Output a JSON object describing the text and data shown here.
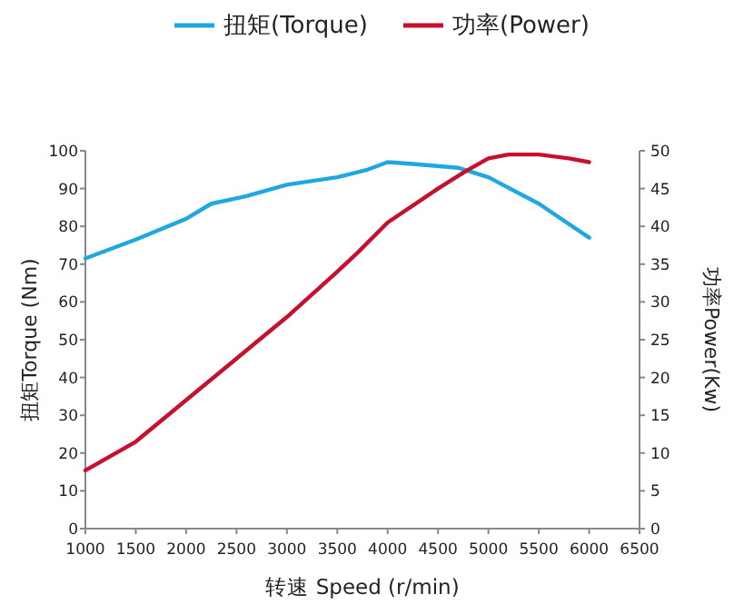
{
  "chart_data": {
    "type": "line",
    "xlabel": "转速 Speed (r/min)",
    "ylabel": "扭矩Torque (Nm)",
    "y2label": "功率Power(Kw)",
    "legend": "top",
    "grid": false,
    "marker": "none",
    "line_style": "solid",
    "xlim": [
      1000,
      6500
    ],
    "xticks": [
      1000,
      1500,
      2000,
      2500,
      3000,
      3500,
      4000,
      4500,
      5000,
      5500,
      6000,
      6500
    ],
    "ylim": [
      0,
      100
    ],
    "yticks": [
      0,
      10,
      20,
      30,
      40,
      50,
      60,
      70,
      80,
      90,
      100
    ],
    "y2lim": [
      0,
      50
    ],
    "y2ticks": [
      0,
      5,
      10,
      15,
      20,
      25,
      30,
      35,
      40,
      45,
      50
    ],
    "series": [
      {
        "name": "扭矩(Torque)",
        "color": "#1fa8e0",
        "x": [
          1000,
          1500,
          2000,
          2250,
          2600,
          3000,
          3500,
          3800,
          4000,
          4250,
          4700,
          5000,
          5500,
          6000
        ],
        "values": [
          71.5,
          76.5,
          82,
          86,
          88,
          91,
          93,
          95,
          97,
          96.5,
          95.5,
          93,
          86,
          77
        ]
      },
      {
        "name": "功率(Power)",
        "color": "#c8102e",
        "axis": "y2",
        "x": [
          1000,
          1500,
          2000,
          2500,
          3000,
          3500,
          3700,
          4000,
          4500,
          4800,
          5000,
          5200,
          5500,
          5800,
          6000
        ],
        "values": [
          7.7,
          11.5,
          17,
          22.5,
          28,
          34,
          36.5,
          40.5,
          45,
          47.5,
          49,
          49.5,
          49.5,
          49,
          48.5
        ]
      }
    ]
  }
}
